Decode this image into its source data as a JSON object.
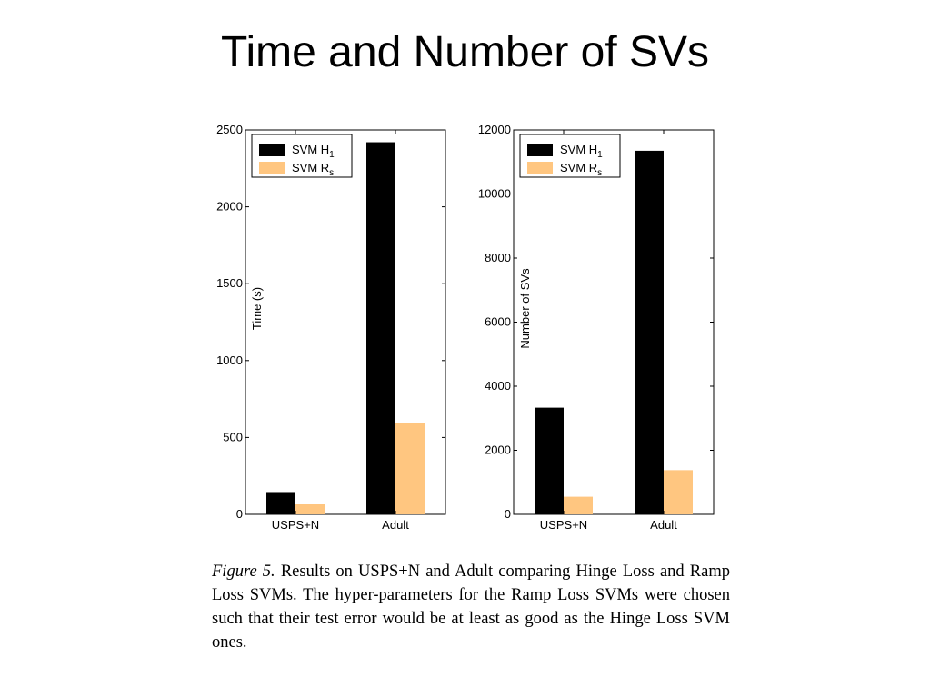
{
  "slide": {
    "title": "Time and Number of SVs"
  },
  "colors": {
    "svm_h1": "#000000",
    "svm_rs": "#FFC680"
  },
  "chart_data": [
    {
      "type": "bar",
      "categories": [
        "USPS+N",
        "Adult"
      ],
      "series": [
        {
          "name": "SVM H1",
          "legend_main": "SVM H",
          "legend_sub": "1",
          "values": [
            145,
            2420
          ]
        },
        {
          "name": "SVM Rs",
          "legend_main": "SVM R",
          "legend_sub": "s",
          "values": [
            65,
            595
          ]
        }
      ],
      "title": "",
      "xlabel": "",
      "ylabel": "Time (s)",
      "ylim": [
        0,
        2500
      ],
      "yticks": [
        0,
        500,
        1000,
        1500,
        2000,
        2500
      ],
      "grid": false,
      "legend": "top-left"
    },
    {
      "type": "bar",
      "categories": [
        "USPS+N",
        "Adult"
      ],
      "series": [
        {
          "name": "SVM H1",
          "legend_main": "SVM H",
          "legend_sub": "1",
          "values": [
            3330,
            11350
          ]
        },
        {
          "name": "SVM Rs",
          "legend_main": "SVM R",
          "legend_sub": "s",
          "values": [
            550,
            1380
          ]
        }
      ],
      "title": "",
      "xlabel": "",
      "ylabel": "Number of SVs",
      "ylim": [
        0,
        12000
      ],
      "yticks": [
        0,
        2000,
        4000,
        6000,
        8000,
        10000,
        12000
      ],
      "grid": false,
      "legend": "top-left"
    }
  ],
  "caption": {
    "label": "Figure 5.",
    "text": "Results on USPS+N and Adult comparing Hinge Loss and Ramp Loss SVMs. The hyper-parameters for the Ramp Loss SVMs were chosen such that their test error would be at least as good as the Hinge Loss SVM ones."
  }
}
